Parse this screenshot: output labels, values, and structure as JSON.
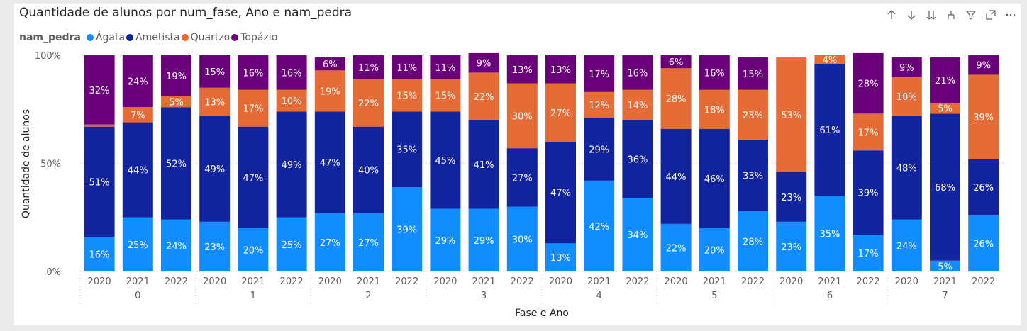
{
  "header": {
    "title": "Quantidade de alunos por num_fase, Ano e nam_pedra"
  },
  "legend": {
    "title": "nam_pedra",
    "items": [
      {
        "label": "Ágata",
        "color": "#118DFF"
      },
      {
        "label": "Ametista",
        "color": "#12239E"
      },
      {
        "label": "Quartzo",
        "color": "#E66C37"
      },
      {
        "label": "Topázio",
        "color": "#6B007B"
      }
    ]
  },
  "toolbar": {
    "icons": [
      "sort-ascending-icon",
      "sort-descending-icon",
      "expand-all-down-icon",
      "drill-down-icon",
      "filter-icon",
      "focus-mode-icon",
      "more-options-icon"
    ]
  },
  "chart_data": {
    "type": "bar",
    "stacked": "100%",
    "ylabel": "Quantidade de alunos",
    "xlabel": "Fase e Ano",
    "yticks": [
      "0%",
      "50%",
      "100%"
    ],
    "ylim": [
      0,
      100
    ],
    "groups": [
      {
        "fase": "0",
        "years": [
          "2020",
          "2021",
          "2022"
        ]
      },
      {
        "fase": "1",
        "years": [
          "2020",
          "2021",
          "2022"
        ]
      },
      {
        "fase": "2",
        "years": [
          "2020",
          "2021",
          "2022"
        ]
      },
      {
        "fase": "3",
        "years": [
          "2020",
          "2021",
          "2022"
        ]
      },
      {
        "fase": "4",
        "years": [
          "2020",
          "2021",
          "2022"
        ]
      },
      {
        "fase": "5",
        "years": [
          "2020",
          "2021",
          "2022"
        ]
      },
      {
        "fase": "6",
        "years": [
          "2020",
          "2021",
          "2022"
        ]
      },
      {
        "fase": "7",
        "years": [
          "2020",
          "2021",
          "2022"
        ]
      }
    ],
    "series": [
      {
        "name": "Ágata",
        "color": "#118DFF",
        "values": [
          16,
          25,
          24,
          23,
          20,
          25,
          27,
          27,
          39,
          29,
          29,
          30,
          13,
          42,
          34,
          22,
          20,
          28,
          23,
          35,
          17,
          24,
          5,
          26
        ],
        "labels": [
          "16%",
          "25%",
          "24%",
          "23%",
          "20%",
          "25%",
          "27%",
          "27%",
          "39%",
          "29%",
          "29%",
          "30%",
          "13%",
          "42%",
          "34%",
          "22%",
          "20%",
          "28%",
          "23%",
          "35%",
          "17%",
          "24%",
          "5%",
          "26%"
        ]
      },
      {
        "name": "Ametista",
        "color": "#12239E",
        "values": [
          51,
          44,
          52,
          49,
          47,
          49,
          47,
          40,
          35,
          45,
          41,
          27,
          47,
          29,
          36,
          44,
          46,
          33,
          23,
          61,
          39,
          48,
          68,
          26
        ],
        "labels": [
          "51%",
          "44%",
          "52%",
          "49%",
          "47%",
          "49%",
          "47%",
          "40%",
          "35%",
          "45%",
          "41%",
          "27%",
          "47%",
          "29%",
          "36%",
          "44%",
          "46%",
          "33%",
          "23%",
          "61%",
          "39%",
          "48%",
          "68%",
          "26%"
        ]
      },
      {
        "name": "Quartzo",
        "color": "#E66C37",
        "values": [
          1,
          7,
          5,
          13,
          17,
          10,
          19,
          22,
          15,
          15,
          22,
          30,
          27,
          12,
          14,
          28,
          18,
          23,
          53,
          4,
          17,
          18,
          5,
          39
        ],
        "labels": [
          "",
          "7%",
          "5%",
          "13%",
          "17%",
          "10%",
          "19%",
          "22%",
          "15%",
          "15%",
          "22%",
          "30%",
          "27%",
          "12%",
          "14%",
          "28%",
          "18%",
          "23%",
          "53%",
          "4%",
          "17%",
          "18%",
          "5%",
          "39%"
        ]
      },
      {
        "name": "Topázio",
        "color": "#6B007B",
        "values": [
          32,
          24,
          19,
          15,
          16,
          16,
          6,
          11,
          11,
          11,
          9,
          13,
          13,
          17,
          16,
          6,
          16,
          15,
          0,
          0,
          28,
          9,
          21,
          9
        ],
        "labels": [
          "32%",
          "24%",
          "19%",
          "15%",
          "16%",
          "16%",
          "6%",
          "11%",
          "11%",
          "11%",
          "9%",
          "13%",
          "13%",
          "17%",
          "16%",
          "6%",
          "16%",
          "15%",
          "",
          "",
          "28%",
          "9%",
          "21%",
          "9%"
        ]
      }
    ]
  }
}
